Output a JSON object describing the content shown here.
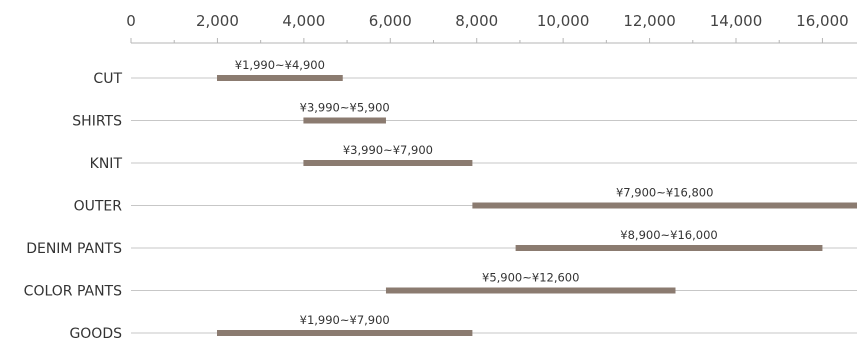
{
  "chart_data": {
    "type": "bar",
    "orientation": "horizontal",
    "subtype": "floating-range",
    "title": "",
    "xlabel": "",
    "ylabel": "",
    "xlim": [
      0,
      16800
    ],
    "x_ticks": [
      0,
      2000,
      4000,
      6000,
      8000,
      10000,
      12000,
      14000,
      16000
    ],
    "x_tick_labels": [
      "0",
      "2,000",
      "4,000",
      "6,000",
      "8,000",
      "10,000",
      "12,000",
      "14,000",
      "16,000"
    ],
    "axis_position": "top",
    "grid": false,
    "legend": "none",
    "categories": [
      "CUT",
      "SHIRTS",
      "KNIT",
      "OUTER",
      "DENIM PANTS",
      "COLOR PANTS",
      "GOODS"
    ],
    "ranges": [
      [
        1990,
        4900
      ],
      [
        3990,
        5900
      ],
      [
        3990,
        7900
      ],
      [
        7900,
        16800
      ],
      [
        8900,
        16000
      ],
      [
        5900,
        12600
      ],
      [
        1990,
        7900
      ]
    ],
    "range_labels": [
      "¥1,990~¥4,900",
      "¥3,990~¥5,900",
      "¥3,990~¥7,900",
      "¥7,900~¥16,800",
      "¥8,900~¥16,000",
      "¥5,900~¥12,600",
      "¥1,990~¥7,900"
    ],
    "colors": {
      "bar": "#8b7b70",
      "line": "#c7c7c7",
      "axis": "#b5b5b5",
      "text": "#333333"
    }
  }
}
